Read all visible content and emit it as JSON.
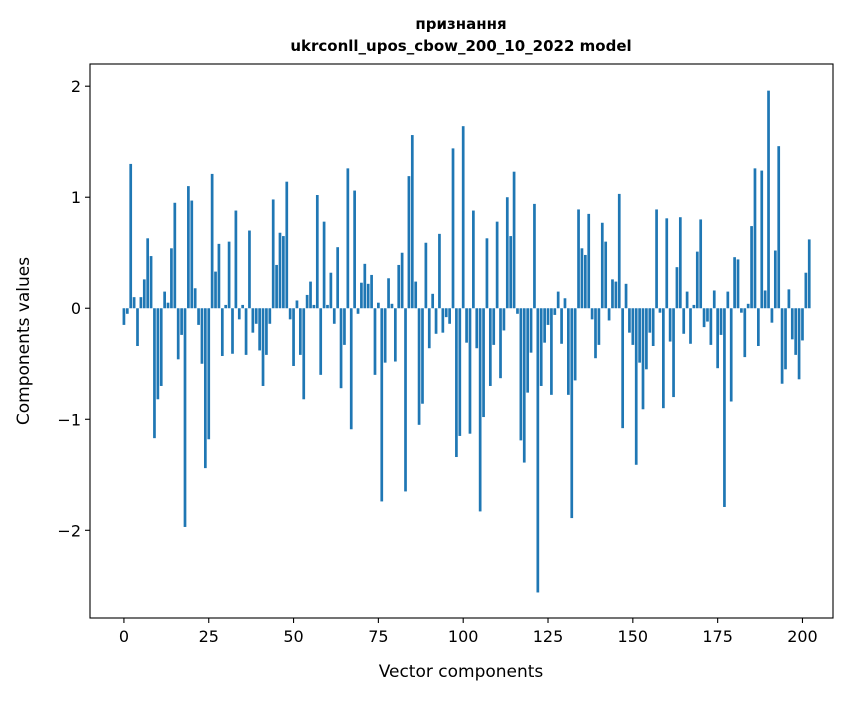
{
  "chart_data": {
    "type": "bar",
    "title_line1": "признання",
    "title_line2": "ukrconll_upos_cbow_200_10_2022 model",
    "xlabel": "Vector components",
    "ylabel": "Components values",
    "xlim": [
      -10,
      209
    ],
    "ylim": [
      -2.79,
      2.2
    ],
    "xticks": [
      0,
      25,
      50,
      75,
      100,
      125,
      150,
      175,
      200
    ],
    "yticks": [
      -2,
      -1,
      0,
      1,
      2
    ],
    "xtick_labels": [
      "0",
      "25",
      "50",
      "75",
      "100",
      "125",
      "150",
      "175",
      "200"
    ],
    "ytick_labels": [
      "−2",
      "−1",
      "0",
      "1",
      "2"
    ],
    "bar_color": "#1f77b4",
    "grid": false,
    "values": [
      -0.15,
      -0.05,
      1.3,
      0.1,
      -0.34,
      0.1,
      0.26,
      0.63,
      0.47,
      -1.17,
      -0.82,
      -0.7,
      0.15,
      0.05,
      0.54,
      0.95,
      -0.46,
      -0.24,
      -1.97,
      1.1,
      0.97,
      0.18,
      -0.15,
      -0.5,
      -1.44,
      -1.18,
      1.21,
      0.33,
      0.58,
      -0.43,
      0.03,
      0.6,
      -0.41,
      0.88,
      -0.1,
      0.03,
      -0.42,
      0.7,
      -0.22,
      -0.14,
      -0.38,
      -0.7,
      -0.42,
      -0.14,
      0.98,
      0.39,
      0.68,
      0.65,
      1.14,
      -0.1,
      -0.52,
      0.07,
      -0.42,
      -0.82,
      0.12,
      0.24,
      0.03,
      1.02,
      -0.6,
      0.78,
      0.03,
      0.32,
      -0.14,
      0.55,
      -0.72,
      -0.33,
      1.26,
      -1.09,
      1.06,
      -0.05,
      0.23,
      0.4,
      0.22,
      0.3,
      -0.6,
      0.05,
      -1.74,
      -0.49,
      0.27,
      0.04,
      -0.48,
      0.39,
      0.5,
      -1.65,
      1.19,
      1.56,
      0.24,
      -1.05,
      -0.86,
      0.59,
      -0.36,
      0.13,
      -0.23,
      0.67,
      -0.22,
      -0.08,
      -0.14,
      1.44,
      -1.34,
      -1.15,
      1.64,
      -0.31,
      -1.13,
      0.88,
      -0.36,
      -1.83,
      -0.98,
      0.63,
      -0.7,
      -0.33,
      0.78,
      -0.63,
      -0.2,
      1.0,
      0.65,
      1.23,
      -0.05,
      -1.19,
      -1.39,
      -0.76,
      -0.4,
      0.94,
      -2.56,
      -0.7,
      -0.31,
      -0.15,
      -0.78,
      -0.06,
      0.15,
      -0.32,
      0.09,
      -0.78,
      -1.89,
      -0.65,
      0.89,
      0.54,
      0.48,
      0.85,
      -0.1,
      -0.45,
      -0.33,
      0.77,
      0.6,
      -0.11,
      0.26,
      0.24,
      1.03,
      -1.08,
      0.22,
      -0.22,
      -0.33,
      -1.41,
      -0.49,
      -0.91,
      -0.55,
      -0.22,
      -0.34,
      0.89,
      -0.04,
      -0.9,
      0.81,
      -0.3,
      -0.8,
      0.37,
      0.82,
      -0.23,
      0.15,
      -0.32,
      0.03,
      0.51,
      0.8,
      -0.17,
      -0.12,
      -0.33,
      0.16,
      -0.54,
      -0.24,
      -1.79,
      0.15,
      -0.84,
      0.46,
      0.44,
      -0.04,
      -0.44,
      0.04,
      0.74,
      1.26,
      -0.34,
      1.24,
      0.16,
      1.96,
      -0.13,
      0.52,
      1.46,
      -0.68,
      -0.55,
      0.17,
      -0.28,
      -0.42,
      -0.64,
      -0.29,
      0.32,
      0.62
    ]
  }
}
